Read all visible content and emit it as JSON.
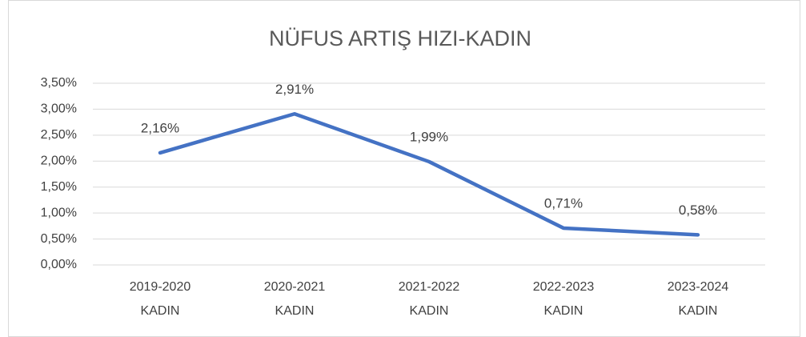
{
  "chart_data": {
    "type": "line",
    "title": "NÜFUS ARTIŞ HIZI-KADIN",
    "categories": [
      "2019-2020 KADIN",
      "2020-2021 KADIN",
      "2021-2022 KADIN",
      "2022-2023 KADIN",
      "2023-2024 KADIN"
    ],
    "series": [
      {
        "name": "KADIN",
        "color": "#4472c4",
        "values": [
          2.16,
          2.91,
          1.99,
          0.71,
          0.58
        ],
        "value_labels": [
          "2,16%",
          "2,91%",
          "1,99%",
          "0,71%",
          "0,58%"
        ]
      }
    ],
    "ylim": [
      0,
      3.5
    ],
    "yticks": [
      {
        "value": 0,
        "label": "0,00%"
      },
      {
        "value": 0.5,
        "label": "0,50%"
      },
      {
        "value": 1,
        "label": "1,00%"
      },
      {
        "value": 1.5,
        "label": "1,50%"
      },
      {
        "value": 2,
        "label": "2,00%"
      },
      {
        "value": 2.5,
        "label": "2,50%"
      },
      {
        "value": 3,
        "label": "3,00%"
      },
      {
        "value": 3.5,
        "label": "3,50%"
      }
    ],
    "grid": true
  }
}
